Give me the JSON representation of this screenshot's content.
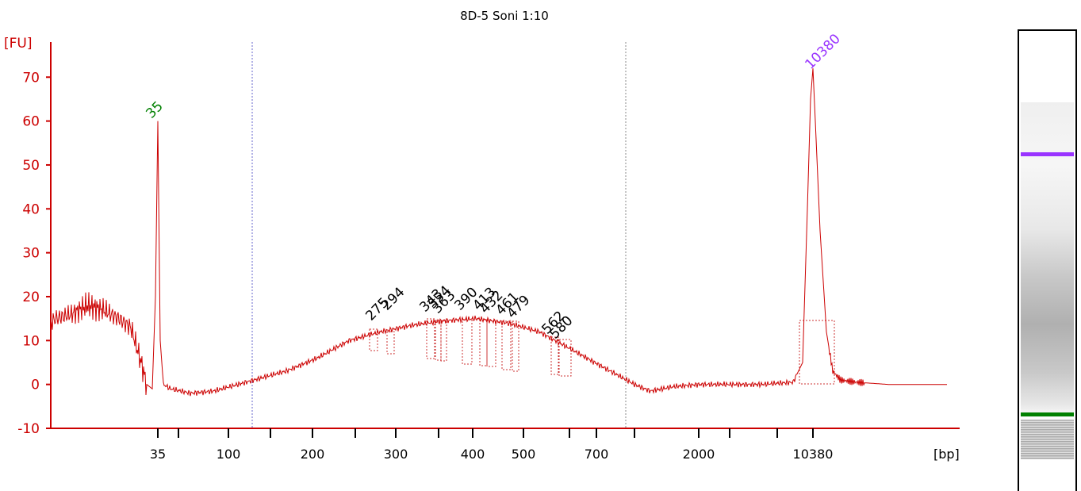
{
  "chart_data": {
    "type": "line",
    "title": "8D-5 Soni 1:10",
    "ylabel": "[FU]",
    "xlabel": "[bp]",
    "ylim": [
      -10,
      78
    ],
    "y_ticks": [
      -10,
      0,
      10,
      20,
      30,
      40,
      50,
      60,
      70
    ],
    "x_tick_labels": [
      "35",
      "100",
      "200",
      "300",
      "400",
      "500",
      "700",
      "2000",
      "10380"
    ],
    "series": [
      {
        "values_description": "electropherogram trace",
        "x_labels": [
          "35",
          "100",
          "200",
          "300",
          "400",
          "500",
          "700",
          "2000",
          "10380"
        ],
        "points": [
          {
            "x": "start",
            "y": 14
          },
          {
            "x": "35",
            "y": 60
          },
          {
            "x": "100",
            "y": -2
          },
          {
            "x": "200",
            "y": 6
          },
          {
            "x": "300",
            "y": 14
          },
          {
            "x": "400",
            "y": 15
          },
          {
            "x": "500",
            "y": 13
          },
          {
            "x": "700",
            "y": 3
          },
          {
            "x": "2000",
            "y": 0
          },
          {
            "x": "10380",
            "y": 72
          },
          {
            "x": "end",
            "y": 0
          }
        ]
      }
    ],
    "peaks": [
      {
        "label": "35",
        "y": 60,
        "color": "#008000"
      },
      {
        "label": "10380",
        "y": 72,
        "color": "#9933ff"
      },
      {
        "label": "275",
        "y": 12
      },
      {
        "label": "294",
        "y": 12
      },
      {
        "label": "343",
        "y": 14
      },
      {
        "label": "354",
        "y": 14
      },
      {
        "label": "363",
        "y": 14
      },
      {
        "label": "390",
        "y": 14
      },
      {
        "label": "413",
        "y": 14
      },
      {
        "label": "432",
        "y": 14
      },
      {
        "label": "461",
        "y": 13
      },
      {
        "label": "479",
        "y": 13
      },
      {
        "label": "562",
        "y": 9
      },
      {
        "label": "580",
        "y": 9
      }
    ],
    "colors": {
      "trace": "#cc0000",
      "axis": "#cc0000",
      "lower_marker": "#008000",
      "upper_marker": "#9933ff",
      "region_line": "#6666cc"
    }
  }
}
